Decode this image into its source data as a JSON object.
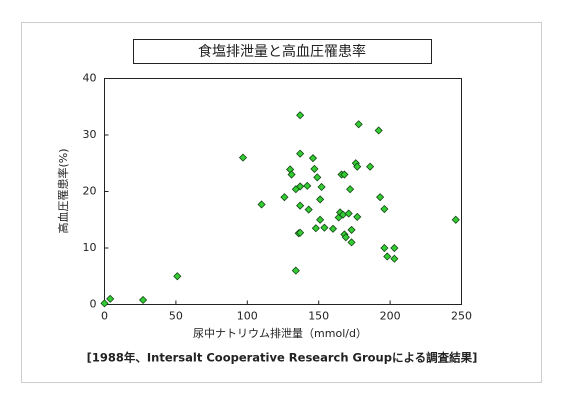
{
  "chart_data": {
    "type": "scatter",
    "title": "食塩排泄量と高血圧罹患率",
    "x_label": "尿中ナトリウム排泄量（mmol/d）",
    "y_label": "高血圧罹患率(%)",
    "source": "[1988年、Intersalt Cooperative Research Groupによる調査結果]",
    "color": "#33cc33",
    "xlim": [
      0,
      250
    ],
    "ylim": [
      0,
      40
    ],
    "xticks": [
      0,
      50,
      100,
      150,
      200,
      250
    ],
    "yticks": [
      0,
      10,
      20,
      30,
      40
    ],
    "x": [
      0,
      4,
      27,
      51,
      97,
      110,
      126,
      130,
      131,
      134,
      134,
      136,
      137,
      137,
      137,
      137,
      137,
      142,
      143,
      146,
      147,
      148,
      149,
      151,
      151,
      152,
      154,
      160,
      164,
      165,
      166,
      167,
      168,
      168,
      169,
      171,
      172,
      173,
      173,
      176,
      177,
      178,
      177,
      186,
      192,
      193,
      196,
      196,
      198,
      203,
      203,
      246
    ],
    "values": [
      0.2,
      1,
      0.8,
      5,
      26,
      17.7,
      19,
      23.9,
      23,
      20.4,
      6,
      12.6,
      12.7,
      33.5,
      26.7,
      20.9,
      17.5,
      21,
      16.8,
      25.9,
      24,
      13.5,
      22.5,
      15,
      18.6,
      20.8,
      13.6,
      13.4,
      15.4,
      16.3,
      23,
      15.9,
      12.4,
      23,
      11.9,
      16.1,
      20.4,
      13.2,
      11,
      25,
      24.4,
      31.9,
      15.5,
      24.4,
      30.8,
      19,
      16.9,
      10,
      8.5,
      10,
      8.1,
      15
    ]
  }
}
